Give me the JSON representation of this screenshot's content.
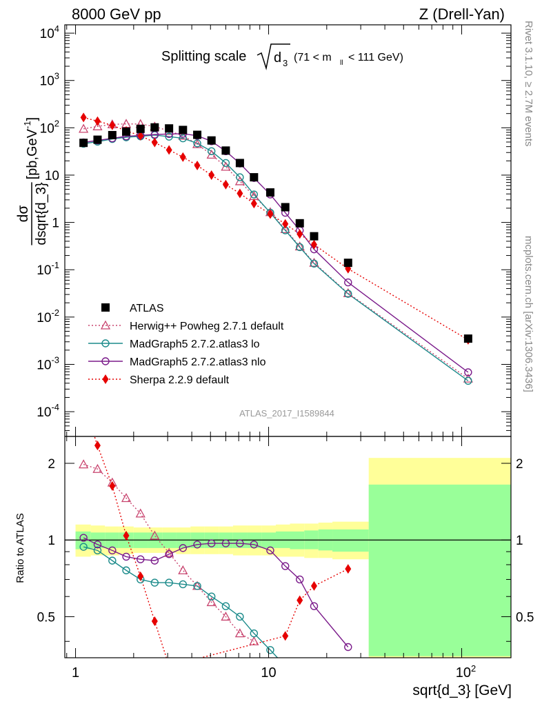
{
  "header": {
    "left": "8000 GeV pp",
    "right": "Z (Drell-Yan)"
  },
  "plot_title": {
    "main": "Splitting scale",
    "sqrt_arg": "d",
    "sqrt_sub": "3",
    "cut_open": "(71 < m",
    "cut_sub": "ll",
    "cut_close": " < 111 GeV)"
  },
  "side_labels": {
    "rivet": "Rivet 3.1.10, ≥ 2.7M events",
    "mcplots": "mcplots.cern.ch [arXiv:1306.3436]"
  },
  "watermark": "ATLAS_2017_I1589844",
  "y_label_main": {
    "numerator": "dσ",
    "denominator": "dsqrt{d_3}",
    "units": "[pb,GeV",
    "units_exp": "-1",
    "units_close": "]"
  },
  "y_label_ratio": "Ratio to ATLAS",
  "x_label": "sqrt{d_3} [GeV]",
  "colors": {
    "atlas": "#000000",
    "herwig": "#c8436e",
    "madgraph_lo": "#1a8a8a",
    "madgraph_nlo": "#7a1a8a",
    "sherpa": "#e60000",
    "band_inner": "#99ff99",
    "band_outer": "#ffff99"
  },
  "chart_data": [
    {
      "type": "scatter",
      "panel": "main",
      "xscale": "log",
      "yscale": "log",
      "xlim": [
        0.88,
        180
      ],
      "ylim": [
        3e-05,
        15000
      ],
      "x_ticks": [
        "1",
        "10",
        "10^2"
      ],
      "y_ticks": [
        "10^-4",
        "10^-3",
        "10^-2",
        "10^-1",
        "1",
        "10",
        "10^2",
        "10^3",
        "10^4"
      ],
      "legend_position": "lower-left",
      "series": [
        {
          "name": "ATLAS",
          "key": "atlas",
          "marker": "square",
          "line": "none",
          "x": [
            1.1,
            1.3,
            1.55,
            1.83,
            2.17,
            2.57,
            3.05,
            3.6,
            4.27,
            5.06,
            6.0,
            7.1,
            8.4,
            10.2,
            12.2,
            14.5,
            17.2,
            25.8,
            108
          ],
          "y": [
            48,
            56,
            70,
            83,
            95,
            102,
            97,
            90,
            71,
            54,
            33,
            18,
            9.0,
            4.3,
            2.1,
            0.96,
            0.51,
            0.14,
            0.0035
          ]
        },
        {
          "name": "Herwig++ Powheg 2.7.1 default",
          "key": "herwig",
          "marker": "open-triangle",
          "line": "dotted",
          "x": [
            1.1,
            1.3,
            1.55,
            1.83,
            2.17,
            2.57,
            3.05,
            3.6,
            4.27,
            5.06,
            6.0,
            7.1,
            8.4,
            10.2,
            12.2,
            14.5,
            17.2,
            25.8,
            108
          ],
          "y": [
            95,
            107,
            118,
            121,
            120,
            106,
            86,
            68,
            45,
            27,
            15,
            7.4,
            3.6,
            1.65,
            0.72,
            0.31,
            0.14,
            0.032,
            0.0005
          ]
        },
        {
          "name": "MadGraph5 2.7.2.atlas3 lo",
          "key": "madgraph_lo",
          "marker": "open-circle",
          "line": "solid",
          "x": [
            1.1,
            1.3,
            1.55,
            1.83,
            2.17,
            2.57,
            3.05,
            3.6,
            4.27,
            5.06,
            6.0,
            7.1,
            8.4,
            10.2,
            12.2,
            14.5,
            17.2,
            25.8,
            108
          ],
          "y": [
            46,
            51,
            58,
            63,
            66,
            70,
            65,
            60,
            47,
            32,
            18,
            9.0,
            3.9,
            1.6,
            0.68,
            0.3,
            0.135,
            0.031,
            0.00045
          ]
        },
        {
          "name": "MadGraph5 2.7.2.atlas3 nlo",
          "key": "madgraph_nlo",
          "marker": "open-circle",
          "line": "solid",
          "x": [
            1.1,
            1.3,
            1.55,
            1.83,
            2.17,
            2.57,
            3.05,
            3.6,
            4.27,
            5.06,
            6.0,
            7.1,
            8.4,
            10.2,
            12.2,
            14.5,
            17.2,
            25.8,
            108
          ],
          "y": [
            49,
            54,
            60,
            66,
            69,
            72,
            74,
            75,
            68,
            52,
            32,
            17.6,
            8.7,
            3.9,
            1.6,
            0.68,
            0.27,
            0.054,
            0.00068
          ]
        },
        {
          "name": "Sherpa 2.2.9 default",
          "key": "sherpa",
          "marker": "diamond",
          "line": "dotted",
          "x": [
            1.1,
            1.3,
            1.55,
            1.83,
            2.17,
            2.57,
            3.05,
            3.6,
            4.27,
            5.06,
            6.0,
            7.1,
            8.4,
            10.2,
            12.2,
            14.5,
            17.2,
            25.8,
            108
          ],
          "y": [
            165,
            138,
            113,
            86,
            68,
            49,
            34,
            24,
            16,
            10,
            6.3,
            4.1,
            2.5,
            1.5,
            0.93,
            0.57,
            0.34,
            0.105,
            0.0033
          ]
        }
      ]
    },
    {
      "type": "line",
      "panel": "ratio",
      "xscale": "log",
      "yscale": "log",
      "xlim": [
        0.88,
        180
      ],
      "ylim": [
        0.345,
        2.55
      ],
      "y_ticks": [
        "0.5",
        "1",
        "2"
      ],
      "reference_line": 1,
      "uncertainty_bands": {
        "edges": [
          1.0,
          1.2,
          1.42,
          1.68,
          2.0,
          2.37,
          2.81,
          3.32,
          3.94,
          4.66,
          5.52,
          6.54,
          7.75,
          9.18,
          10.9,
          12.9,
          15.3,
          18.1,
          21.4,
          33.0,
          180
        ],
        "inner_low": [
          0.92,
          0.93,
          0.93,
          0.93,
          0.93,
          0.93,
          0.93,
          0.93,
          0.93,
          0.93,
          0.93,
          0.93,
          0.93,
          0.93,
          0.93,
          0.92,
          0.92,
          0.91,
          0.9,
          0.35
        ],
        "inner_high": [
          1.08,
          1.07,
          1.07,
          1.07,
          1.07,
          1.07,
          1.07,
          1.07,
          1.07,
          1.07,
          1.07,
          1.07,
          1.07,
          1.07,
          1.08,
          1.08,
          1.09,
          1.1,
          1.1,
          1.65
        ],
        "outer_low": [
          0.86,
          0.87,
          0.87,
          0.88,
          0.89,
          0.89,
          0.89,
          0.88,
          0.88,
          0.88,
          0.88,
          0.87,
          0.87,
          0.87,
          0.86,
          0.86,
          0.85,
          0.85,
          0.84,
          0.33
        ],
        "outer_high": [
          1.15,
          1.14,
          1.13,
          1.13,
          1.12,
          1.12,
          1.12,
          1.12,
          1.13,
          1.13,
          1.13,
          1.14,
          1.14,
          1.14,
          1.15,
          1.16,
          1.16,
          1.17,
          1.18,
          2.1
        ]
      },
      "series": [
        {
          "name": "Herwig++ Powheg 2.7.1 default",
          "key": "herwig",
          "x": [
            1.1,
            1.3,
            1.55,
            1.83,
            2.17,
            2.57,
            3.05,
            3.6,
            4.27,
            5.06,
            6.0,
            7.1,
            8.4
          ],
          "y": [
            1.98,
            1.9,
            1.68,
            1.46,
            1.27,
            1.04,
            0.89,
            0.76,
            0.66,
            0.57,
            0.5,
            0.43,
            0.4
          ]
        },
        {
          "name": "MadGraph5 2.7.2.atlas3 lo",
          "key": "madgraph_lo",
          "x": [
            1.1,
            1.3,
            1.55,
            1.83,
            2.17,
            2.57,
            3.05,
            3.6,
            4.27,
            5.06,
            6.0,
            7.1,
            8.4,
            10.2,
            12.2
          ],
          "y": [
            0.94,
            0.91,
            0.83,
            0.76,
            0.7,
            0.68,
            0.68,
            0.67,
            0.66,
            0.6,
            0.55,
            0.5,
            0.43,
            0.37,
            0.32
          ]
        },
        {
          "name": "MadGraph5 2.7.2.atlas3 nlo",
          "key": "madgraph_nlo",
          "x": [
            1.1,
            1.3,
            1.55,
            1.83,
            2.17,
            2.57,
            3.05,
            3.6,
            4.27,
            5.06,
            6.0,
            7.1,
            8.4,
            10.2,
            12.2,
            14.5,
            17.2,
            25.8
          ],
          "y": [
            1.02,
            0.96,
            0.91,
            0.86,
            0.84,
            0.83,
            0.88,
            0.93,
            0.96,
            0.97,
            0.97,
            0.97,
            0.96,
            0.91,
            0.79,
            0.7,
            0.55,
            0.38
          ]
        },
        {
          "name": "Sherpa 2.2.9 default",
          "key": "sherpa",
          "x": [
            1.1,
            1.3,
            1.55,
            1.83,
            2.17,
            2.57,
            3.05,
            12.2,
            14.5,
            17.2,
            25.8
          ],
          "y": [
            3.4,
            2.35,
            1.63,
            1.04,
            0.72,
            0.48,
            0.32,
            0.42,
            0.58,
            0.66,
            0.77
          ]
        }
      ]
    }
  ]
}
